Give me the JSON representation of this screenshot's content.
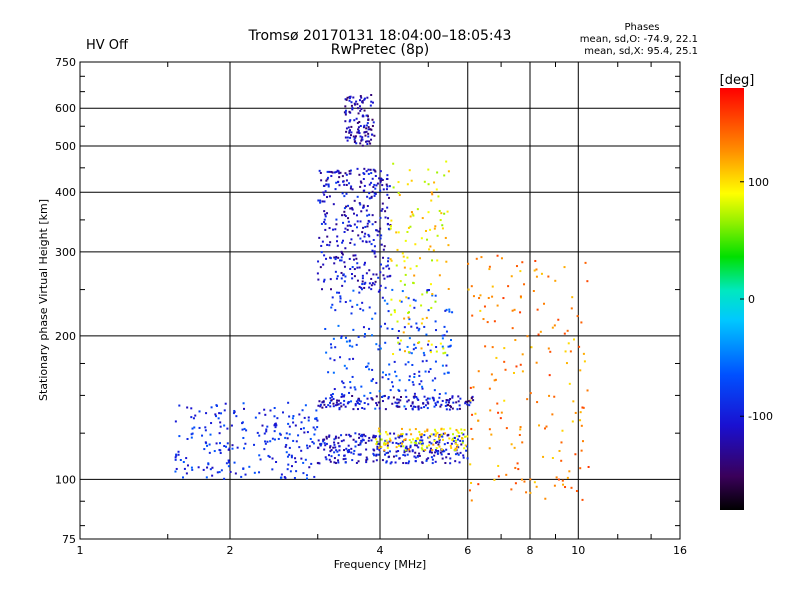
{
  "header": {
    "title_line1": "Tromsø 20170131 18:04:00–18:05:43",
    "title_line2": "RwPretec (8p)",
    "status": "HV Off",
    "status_color": "#cc0000",
    "phases_title": "Phases",
    "phases_line1": "mean, sd,O: -74.9, 22.1",
    "phases_line2": "mean, sd,X:  95.4, 25.1"
  },
  "chart_data": {
    "type": "scatter",
    "xlabel": "Frequency [MHz]",
    "ylabel": "Stationary phase Virtual Height [km]",
    "x_scale": "log",
    "y_scale": "log",
    "xlim": [
      1,
      16
    ],
    "ylim": [
      75,
      750
    ],
    "x_ticks": [
      1,
      2,
      4,
      6,
      8,
      10,
      16
    ],
    "y_ticks": [
      75,
      100,
      200,
      300,
      400,
      500,
      600,
      750
    ],
    "grid": true,
    "colorbar": {
      "label": "[deg]",
      "ticks": [
        100,
        0,
        -100
      ],
      "range": [
        -180,
        180
      ],
      "colormap": "rainbow"
    },
    "clusters": [
      {
        "label": "low F-region trace",
        "x_range": [
          1.55,
          3.0
        ],
        "y_range": [
          100,
          145
        ],
        "color_deg": -90,
        "density": 230
      },
      {
        "label": "F trace O",
        "x_range": [
          3.0,
          6.0
        ],
        "y_range": [
          108,
          125
        ],
        "color_deg": -105,
        "density": 300
      },
      {
        "label": "F trace X",
        "x_range": [
          3.9,
          6.0
        ],
        "y_range": [
          115,
          128
        ],
        "color_deg": 100,
        "density": 110
      },
      {
        "label": "oblique echoes",
        "x_range": [
          3.0,
          4.2
        ],
        "y_range": [
          250,
          450
        ],
        "color_deg": -110,
        "density": 330
      },
      {
        "label": "spread echoes high",
        "x_range": [
          3.4,
          3.9
        ],
        "y_range": [
          500,
          640
        ],
        "color_deg": -120,
        "density": 120
      },
      {
        "label": "mid spread",
        "x_range": [
          3.1,
          5.6
        ],
        "y_range": [
          140,
          250
        ],
        "color_deg": -80,
        "density": 230
      },
      {
        "label": "X-mode spread",
        "x_range": [
          4.2,
          5.5
        ],
        "y_range": [
          180,
          470
        ],
        "color_deg": 95,
        "density": 120
      },
      {
        "label": "high frequency scatter",
        "x_range": [
          6.0,
          10.5
        ],
        "y_range": [
          90,
          300
        ],
        "color_deg": 130,
        "density": 180
      },
      {
        "label": "upper band",
        "x_range": [
          3.0,
          6.2
        ],
        "y_range": [
          140,
          150
        ],
        "color_deg": -115,
        "density": 140
      }
    ]
  }
}
